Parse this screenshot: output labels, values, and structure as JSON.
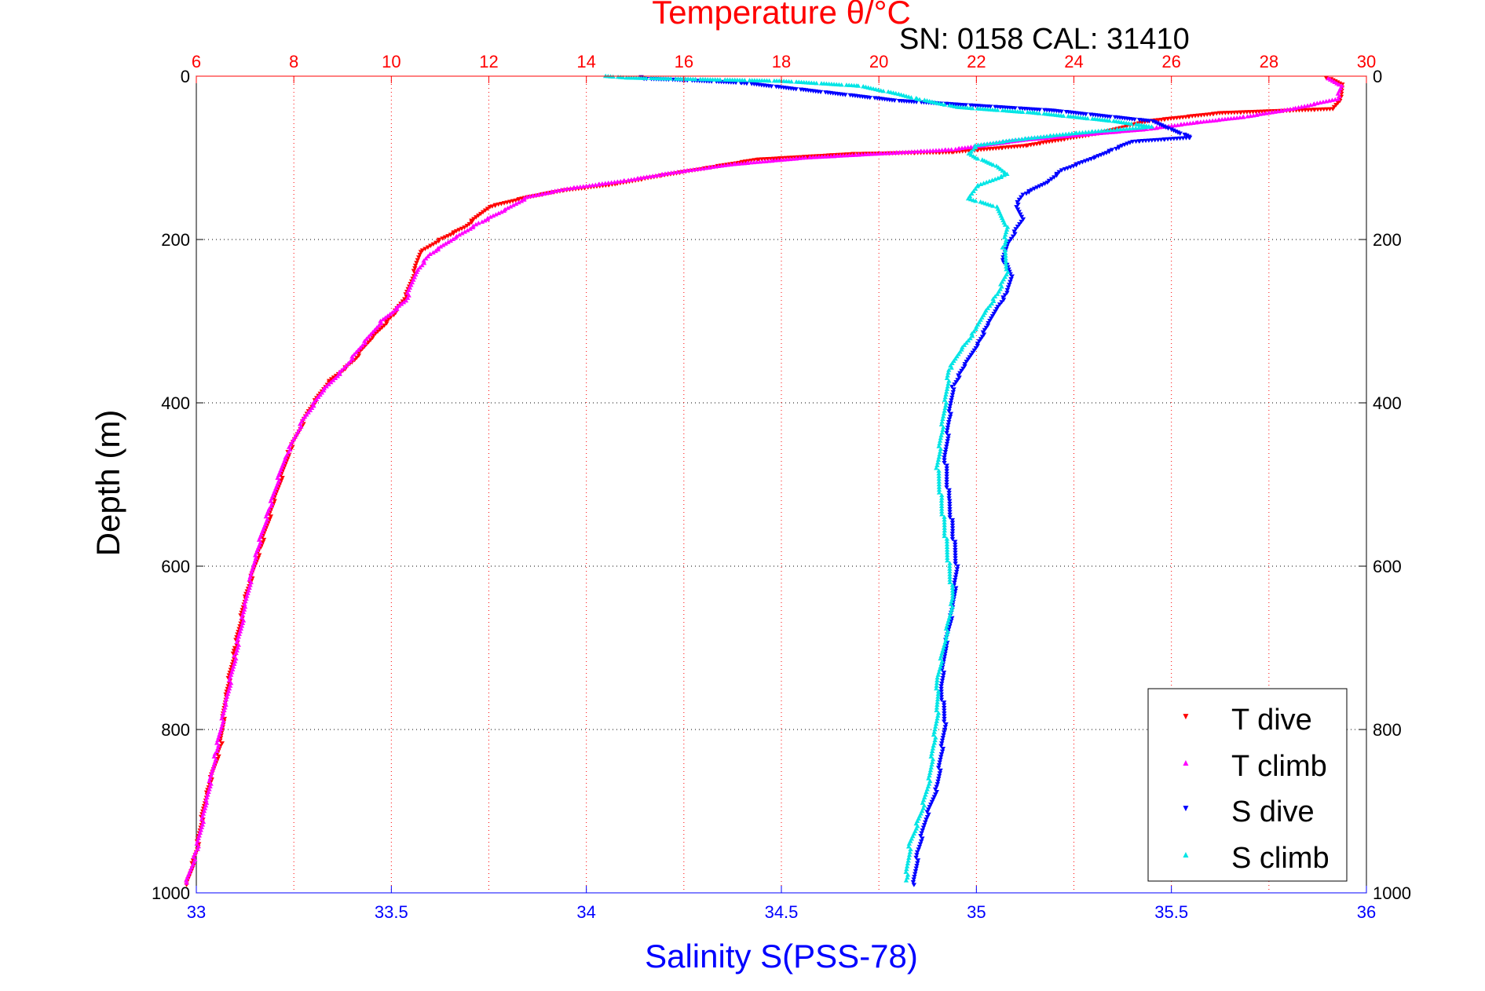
{
  "chart_data": {
    "type": "scatter",
    "title": "Temperature θ/°C",
    "annotation": "SN: 0158  CAL: 31410",
    "ylabel": "Depth (m)",
    "xlabel_bottom": "Salinity S(PSS-78)",
    "y_axis": {
      "range": [
        0,
        1000
      ],
      "reversed": true,
      "ticks": [
        "0",
        "200",
        "400",
        "600",
        "800",
        "1000"
      ]
    },
    "x_top": {
      "label": "Temperature θ/°C",
      "range": [
        6,
        30
      ],
      "ticks": [
        "6",
        "8",
        "10",
        "12",
        "14",
        "16",
        "18",
        "20",
        "22",
        "24",
        "26",
        "28",
        "30"
      ],
      "color": "#ff0000"
    },
    "x_bottom": {
      "label": "Salinity S(PSS-78)",
      "range": [
        33,
        36
      ],
      "ticks": [
        "33",
        "33.5",
        "34",
        "34.5",
        "35",
        "35.5",
        "36"
      ],
      "color": "#0000ff"
    },
    "grid": {
      "vertical": "red dotted at temperature ticks",
      "horizontal": "black dotted at depth ticks"
    },
    "legend": {
      "placement": "bottom-right",
      "entries": [
        "T dive",
        "T climb",
        "S dive",
        "S climb"
      ]
    },
    "series": [
      {
        "name": "T dive",
        "axis": "temperature",
        "marker": "triangle-down",
        "color": "#ff0000",
        "points": [
          [
            29.2,
            2
          ],
          [
            29.5,
            10
          ],
          [
            29.5,
            25
          ],
          [
            29.3,
            40
          ],
          [
            27.0,
            45
          ],
          [
            25.5,
            55
          ],
          [
            24.5,
            70
          ],
          [
            23.0,
            85
          ],
          [
            21.5,
            93
          ],
          [
            19.5,
            95
          ],
          [
            17.5,
            102
          ],
          [
            16.5,
            112
          ],
          [
            15.5,
            122
          ],
          [
            14.6,
            132
          ],
          [
            13.5,
            140
          ],
          [
            12.8,
            148
          ],
          [
            12.0,
            160
          ],
          [
            11.5,
            185
          ],
          [
            11.0,
            200
          ],
          [
            10.6,
            215
          ],
          [
            10.5,
            235
          ],
          [
            10.3,
            270
          ],
          [
            10.0,
            295
          ],
          [
            9.6,
            320
          ],
          [
            9.2,
            350
          ],
          [
            8.7,
            375
          ],
          [
            8.3,
            410
          ],
          [
            7.9,
            460
          ],
          [
            7.6,
            520
          ],
          [
            7.3,
            580
          ],
          [
            7.0,
            640
          ],
          [
            6.8,
            700
          ],
          [
            6.6,
            760
          ],
          [
            6.5,
            820
          ],
          [
            6.2,
            880
          ],
          [
            6.0,
            950
          ],
          [
            5.8,
            990
          ]
        ]
      },
      {
        "name": "T climb",
        "axis": "temperature",
        "marker": "triangle-up",
        "color": "#ff00ff",
        "points": [
          [
            29.2,
            3
          ],
          [
            29.5,
            12
          ],
          [
            29.4,
            28
          ],
          [
            28.5,
            40
          ],
          [
            27.5,
            50
          ],
          [
            26.5,
            57
          ],
          [
            25.5,
            65
          ],
          [
            23.0,
            78
          ],
          [
            21.5,
            90
          ],
          [
            20.0,
            95
          ],
          [
            18.5,
            100
          ],
          [
            17.0,
            108
          ],
          [
            15.8,
            118
          ],
          [
            14.8,
            128
          ],
          [
            13.6,
            138
          ],
          [
            12.8,
            148
          ],
          [
            12.3,
            165
          ],
          [
            11.8,
            180
          ],
          [
            11.3,
            198
          ],
          [
            10.8,
            218
          ],
          [
            10.5,
            240
          ],
          [
            10.3,
            275
          ],
          [
            9.8,
            300
          ],
          [
            9.4,
            330
          ],
          [
            9.0,
            360
          ],
          [
            8.6,
            385
          ],
          [
            8.2,
            420
          ],
          [
            7.8,
            470
          ],
          [
            7.5,
            530
          ],
          [
            7.2,
            590
          ],
          [
            7.0,
            650
          ],
          [
            6.8,
            710
          ],
          [
            6.6,
            770
          ],
          [
            6.4,
            830
          ],
          [
            6.2,
            890
          ],
          [
            6.0,
            950
          ],
          [
            5.8,
            988
          ]
        ]
      },
      {
        "name": "S dive",
        "axis": "salinity",
        "marker": "triangle-down",
        "color": "#0000ff",
        "points": [
          [
            34.14,
            1
          ],
          [
            34.15,
            3
          ],
          [
            34.22,
            4
          ],
          [
            34.4,
            8
          ],
          [
            34.8,
            30
          ],
          [
            35.2,
            42
          ],
          [
            35.45,
            55
          ],
          [
            35.5,
            65
          ],
          [
            35.55,
            75
          ],
          [
            35.4,
            80
          ],
          [
            35.35,
            90
          ],
          [
            35.3,
            100
          ],
          [
            35.22,
            115
          ],
          [
            35.18,
            130
          ],
          [
            35.12,
            145
          ],
          [
            35.1,
            160
          ],
          [
            35.12,
            175
          ],
          [
            35.1,
            190
          ],
          [
            35.08,
            205
          ],
          [
            35.07,
            225
          ],
          [
            35.09,
            245
          ],
          [
            35.08,
            265
          ],
          [
            35.05,
            285
          ],
          [
            35.03,
            305
          ],
          [
            35.0,
            330
          ],
          [
            34.97,
            355
          ],
          [
            34.94,
            380
          ],
          [
            34.93,
            420
          ],
          [
            34.92,
            470
          ],
          [
            34.93,
            520
          ],
          [
            34.94,
            560
          ],
          [
            34.95,
            600
          ],
          [
            34.94,
            650
          ],
          [
            34.92,
            700
          ],
          [
            34.91,
            750
          ],
          [
            34.92,
            790
          ],
          [
            34.91,
            830
          ],
          [
            34.9,
            870
          ],
          [
            34.87,
            910
          ],
          [
            34.85,
            950
          ],
          [
            34.84,
            990
          ]
        ]
      },
      {
        "name": "S climb",
        "axis": "salinity",
        "marker": "triangle-up",
        "color": "#00e5e5",
        "points": [
          [
            34.05,
            0
          ],
          [
            34.1,
            2
          ],
          [
            34.5,
            6
          ],
          [
            34.7,
            12
          ],
          [
            34.8,
            22
          ],
          [
            34.85,
            28
          ],
          [
            34.95,
            38
          ],
          [
            35.15,
            45
          ],
          [
            35.35,
            55
          ],
          [
            35.45,
            62
          ],
          [
            35.25,
            70
          ],
          [
            35.1,
            78
          ],
          [
            35.0,
            85
          ],
          [
            34.98,
            95
          ],
          [
            35.0,
            100
          ],
          [
            35.05,
            110
          ],
          [
            35.08,
            120
          ],
          [
            35.0,
            135
          ],
          [
            34.98,
            150
          ],
          [
            35.05,
            160
          ],
          [
            35.08,
            185
          ],
          [
            35.07,
            210
          ],
          [
            35.08,
            240
          ],
          [
            35.05,
            270
          ],
          [
            35.02,
            290
          ],
          [
            35.0,
            310
          ],
          [
            34.96,
            335
          ],
          [
            34.93,
            360
          ],
          [
            34.92,
            400
          ],
          [
            34.91,
            440
          ],
          [
            34.9,
            480
          ],
          [
            34.91,
            520
          ],
          [
            34.92,
            560
          ],
          [
            34.93,
            600
          ],
          [
            34.94,
            640
          ],
          [
            34.92,
            690
          ],
          [
            34.9,
            740
          ],
          [
            34.9,
            780
          ],
          [
            34.89,
            820
          ],
          [
            34.88,
            860
          ],
          [
            34.86,
            900
          ],
          [
            34.83,
            940
          ],
          [
            34.82,
            985
          ]
        ]
      }
    ]
  }
}
